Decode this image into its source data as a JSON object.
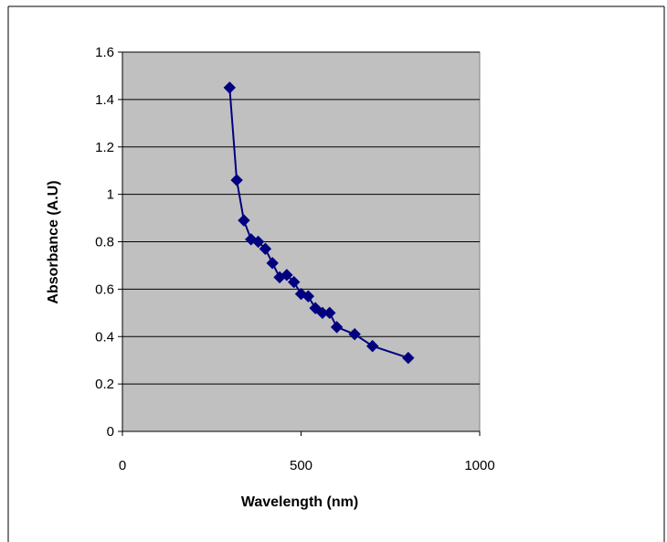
{
  "chart_data": {
    "type": "line",
    "xlabel": "Wavelength (nm)",
    "ylabel": "Absorbance (A.U)",
    "xlim": [
      0,
      1000
    ],
    "ylim": [
      0,
      1.6
    ],
    "x_ticks": [
      "0",
      "500",
      "1000"
    ],
    "y_ticks": [
      "0",
      "0.2",
      "0.4",
      "0.6",
      "0.8",
      "1",
      "1.2",
      "1.4",
      "1.6"
    ],
    "grid": "horizontal",
    "legend": "none",
    "plot_background": "#c0c0c0",
    "series": [
      {
        "color": "#000080",
        "marker": "diamond",
        "x": [
          300,
          320,
          340,
          360,
          380,
          400,
          420,
          440,
          460,
          480,
          500,
          520,
          540,
          560,
          580,
          600,
          650,
          700,
          800
        ],
        "y": [
          1.45,
          1.06,
          0.89,
          0.81,
          0.8,
          0.77,
          0.71,
          0.65,
          0.66,
          0.63,
          0.58,
          0.57,
          0.52,
          0.5,
          0.5,
          0.44,
          0.41,
          0.36,
          0.31
        ]
      }
    ]
  }
}
